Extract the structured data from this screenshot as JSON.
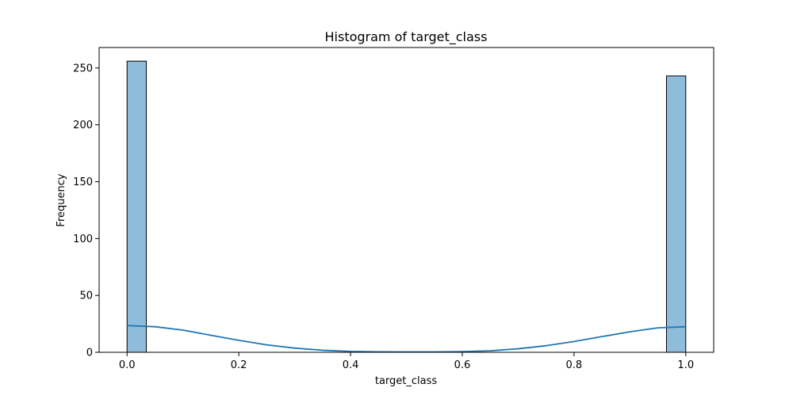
{
  "chart_data": {
    "type": "bar",
    "title": "Histogram of target_class",
    "xlabel": "target_class",
    "ylabel": "Frequency",
    "xlim": [
      -0.05,
      1.05
    ],
    "ylim": [
      0,
      268
    ],
    "x_ticks": [
      0.0,
      0.2,
      0.4,
      0.6,
      0.8,
      1.0
    ],
    "x_tick_labels": [
      "0.0",
      "0.2",
      "0.4",
      "0.6",
      "0.8",
      "1.0"
    ],
    "y_ticks": [
      0,
      50,
      100,
      150,
      200,
      250
    ],
    "y_tick_labels": [
      "0",
      "50",
      "100",
      "150",
      "200",
      "250"
    ],
    "bins": [
      {
        "x0": 0.0,
        "x1": 0.0345,
        "count": 256
      },
      {
        "x0": 0.9655,
        "x1": 1.0,
        "count": 243
      }
    ],
    "kde": {
      "x": [
        0.0,
        0.05,
        0.1,
        0.15,
        0.2,
        0.25,
        0.3,
        0.35,
        0.4,
        0.45,
        0.5,
        0.55,
        0.6,
        0.65,
        0.7,
        0.75,
        0.8,
        0.85,
        0.9,
        0.95,
        1.0
      ],
      "y": [
        23.5,
        22.5,
        19.5,
        15.0,
        10.5,
        6.5,
        3.7,
        1.8,
        0.8,
        0.4,
        0.3,
        0.3,
        0.6,
        1.3,
        3.1,
        5.8,
        9.5,
        13.8,
        18.0,
        21.5,
        22.5
      ]
    },
    "colors": {
      "bar_fill": "#8fbcdb",
      "bar_edge": "#000000",
      "kde_line": "#1f77b4"
    },
    "grid": false,
    "legend": "none"
  }
}
